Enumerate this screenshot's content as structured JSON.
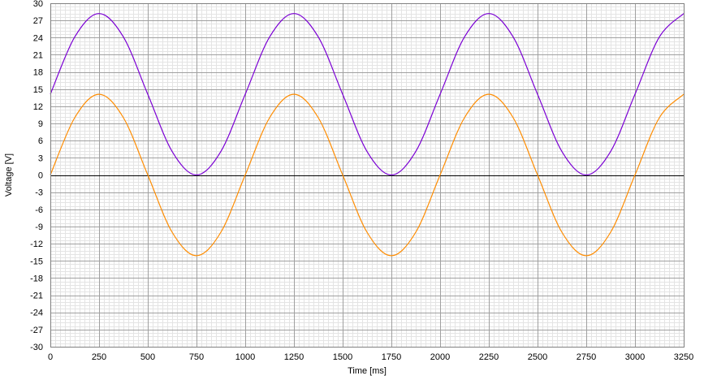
{
  "chart_data": {
    "type": "line",
    "title": "",
    "xlabel": "Time [ms]",
    "ylabel": "Voltage [V]",
    "xlim": [
      0,
      3250
    ],
    "ylim": [
      -30,
      30
    ],
    "x_ticks": [
      0,
      250,
      500,
      750,
      1000,
      1250,
      1500,
      1750,
      2000,
      2250,
      2500,
      2750,
      3000,
      3250
    ],
    "y_ticks": [
      30,
      27,
      24,
      21,
      18,
      15,
      12,
      9,
      6,
      3,
      0,
      -3,
      -6,
      -9,
      -12,
      -15,
      -18,
      -21,
      -24,
      -27,
      -30
    ],
    "x_tick_labels": [
      "0",
      "250",
      "500",
      "750",
      "1000",
      "1250",
      "1500",
      "1750",
      "2000",
      "2250",
      "2500",
      "2750",
      "3000",
      "3250"
    ],
    "y_tick_labels": [
      "30",
      "27",
      "24",
      "21",
      "18",
      "15",
      "12",
      "9",
      "6",
      "3",
      "0",
      "-3",
      "-6",
      "-9",
      "-12",
      "-15",
      "-18",
      "-21",
      "-24",
      "-27",
      "-30"
    ],
    "grid": true,
    "series": [
      {
        "color": "#7b00d4",
        "x": [
          0,
          125,
          250,
          375,
          500,
          625,
          750,
          875,
          1000,
          1125,
          1250,
          1375,
          1500,
          1625,
          1750,
          1875,
          2000,
          2125,
          2250,
          2375,
          2500,
          2625,
          2750,
          2875,
          3000,
          3125,
          3250
        ],
        "y": [
          14.1,
          24.1,
          28.2,
          24.1,
          14.1,
          4.1,
          0.0,
          4.1,
          14.1,
          24.1,
          28.2,
          24.1,
          14.1,
          4.1,
          0.0,
          4.1,
          14.1,
          24.1,
          28.2,
          24.1,
          14.1,
          4.1,
          0.0,
          4.1,
          14.1,
          24.1,
          28.2
        ]
      },
      {
        "color": "#ff8c00",
        "x": [
          0,
          125,
          250,
          375,
          500,
          625,
          750,
          875,
          1000,
          1125,
          1250,
          1375,
          1500,
          1625,
          1750,
          1875,
          2000,
          2125,
          2250,
          2375,
          2500,
          2625,
          2750,
          2875,
          3000,
          3125,
          3250
        ],
        "y": [
          0.0,
          10.0,
          14.1,
          10.0,
          0.0,
          -10.0,
          -14.1,
          -10.0,
          0.0,
          10.0,
          14.1,
          10.0,
          0.0,
          -10.0,
          -14.1,
          -10.0,
          0.0,
          10.0,
          14.1,
          10.0,
          0.0,
          -10.0,
          -14.1,
          -10.0,
          0.0,
          10.0,
          14.1
        ]
      }
    ]
  }
}
